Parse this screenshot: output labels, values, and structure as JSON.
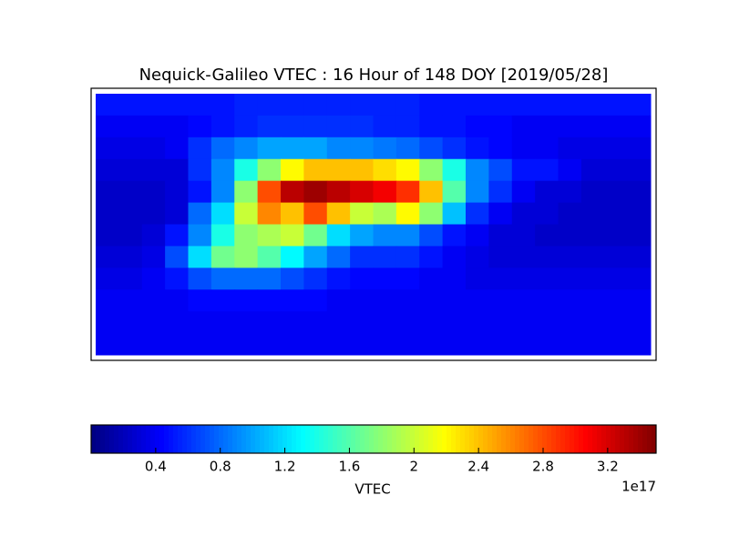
{
  "chart_data": {
    "type": "heatmap",
    "title": "Nequick-Galileo VTEC : 16 Hour of 148 DOY [2019/05/28]",
    "colorbar_label": "VTEC",
    "colorbar_offset": "1e17",
    "colormap": "jet",
    "clim": [
      0,
      3.5
    ],
    "cticks": [
      0.4,
      0.8,
      1.2,
      1.6,
      2.0,
      2.4,
      2.8,
      3.2
    ],
    "values": [
      [
        0.5,
        0.5,
        0.5,
        0.5,
        0.5,
        0.5,
        0.55,
        0.55,
        0.55,
        0.55,
        0.55,
        0.55,
        0.55,
        0.55,
        0.5,
        0.5,
        0.5,
        0.5,
        0.5,
        0.5,
        0.5,
        0.5,
        0.5,
        0.5
      ],
      [
        0.4,
        0.4,
        0.4,
        0.4,
        0.45,
        0.5,
        0.55,
        0.6,
        0.6,
        0.6,
        0.6,
        0.6,
        0.55,
        0.55,
        0.5,
        0.5,
        0.45,
        0.45,
        0.4,
        0.4,
        0.4,
        0.4,
        0.4,
        0.4
      ],
      [
        0.35,
        0.35,
        0.35,
        0.4,
        0.6,
        0.8,
        0.9,
        1.0,
        1.0,
        1.0,
        0.9,
        0.9,
        0.85,
        0.8,
        0.7,
        0.6,
        0.5,
        0.45,
        0.4,
        0.4,
        0.35,
        0.35,
        0.35,
        0.35
      ],
      [
        0.3,
        0.3,
        0.3,
        0.3,
        0.6,
        0.9,
        1.4,
        1.8,
        2.2,
        2.4,
        2.4,
        2.4,
        2.3,
        2.2,
        1.8,
        1.4,
        0.9,
        0.7,
        0.5,
        0.5,
        0.4,
        0.3,
        0.3,
        0.3
      ],
      [
        0.25,
        0.25,
        0.25,
        0.3,
        0.5,
        0.9,
        1.8,
        2.8,
        3.3,
        3.4,
        3.3,
        3.2,
        3.1,
        2.9,
        2.4,
        1.6,
        0.9,
        0.6,
        0.4,
        0.3,
        0.3,
        0.25,
        0.25,
        0.25
      ],
      [
        0.25,
        0.25,
        0.25,
        0.3,
        0.8,
        1.2,
        2.0,
        2.6,
        2.4,
        2.8,
        2.4,
        2.0,
        1.9,
        2.2,
        1.8,
        1.1,
        0.6,
        0.4,
        0.3,
        0.3,
        0.25,
        0.25,
        0.25,
        0.25
      ],
      [
        0.25,
        0.25,
        0.3,
        0.5,
        0.9,
        1.4,
        1.8,
        1.9,
        2.0,
        1.7,
        1.2,
        1.0,
        0.9,
        0.9,
        0.7,
        0.5,
        0.4,
        0.3,
        0.3,
        0.25,
        0.25,
        0.25,
        0.25,
        0.25
      ],
      [
        0.3,
        0.3,
        0.35,
        0.7,
        1.2,
        1.7,
        1.8,
        1.6,
        1.3,
        1.0,
        0.8,
        0.6,
        0.6,
        0.6,
        0.5,
        0.4,
        0.35,
        0.3,
        0.3,
        0.3,
        0.3,
        0.3,
        0.3,
        0.3
      ],
      [
        0.35,
        0.35,
        0.4,
        0.5,
        0.7,
        0.8,
        0.8,
        0.8,
        0.7,
        0.6,
        0.5,
        0.45,
        0.45,
        0.45,
        0.4,
        0.4,
        0.35,
        0.35,
        0.35,
        0.35,
        0.35,
        0.35,
        0.35,
        0.35
      ],
      [
        0.4,
        0.4,
        0.4,
        0.4,
        0.45,
        0.45,
        0.45,
        0.45,
        0.45,
        0.45,
        0.4,
        0.4,
        0.4,
        0.4,
        0.4,
        0.4,
        0.4,
        0.4,
        0.4,
        0.4,
        0.4,
        0.4,
        0.4,
        0.4
      ],
      [
        0.4,
        0.4,
        0.4,
        0.4,
        0.4,
        0.4,
        0.4,
        0.4,
        0.4,
        0.4,
        0.4,
        0.4,
        0.4,
        0.4,
        0.4,
        0.4,
        0.4,
        0.4,
        0.4,
        0.4,
        0.4,
        0.4,
        0.4,
        0.4
      ],
      [
        0.4,
        0.4,
        0.4,
        0.4,
        0.4,
        0.4,
        0.4,
        0.4,
        0.4,
        0.4,
        0.4,
        0.4,
        0.4,
        0.4,
        0.4,
        0.4,
        0.4,
        0.4,
        0.4,
        0.4,
        0.4,
        0.4,
        0.4,
        0.4
      ]
    ]
  }
}
